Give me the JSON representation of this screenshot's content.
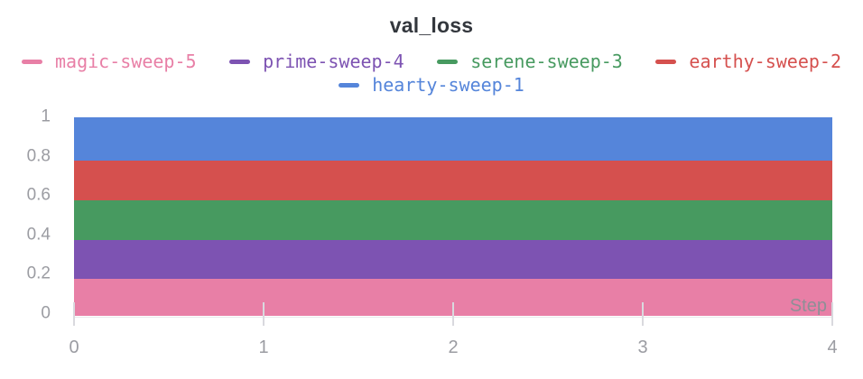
{
  "title": "val_loss",
  "colors": {
    "title_text": "#33373d",
    "axis_text": "#9b9ca2",
    "axis_line": "#e9e9eb",
    "magic_pink": "#e87fa6",
    "prime_purple": "#7d53b2",
    "serene_green": "#479a60",
    "earthy_red": "#d5504e",
    "hearty_blue": "#5585da"
  },
  "legend": {
    "rows": [
      [
        {
          "label": "magic-sweep-5",
          "color": "#e87fa6"
        },
        {
          "label": "prime-sweep-4",
          "color": "#7d53b2"
        },
        {
          "label": "serene-sweep-3",
          "color": "#479a60"
        },
        {
          "label": "earthy-sweep-2",
          "color": "#d5504e"
        }
      ],
      [
        {
          "label": "hearty-sweep-1",
          "color": "#5585da"
        }
      ]
    ]
  },
  "axes": {
    "x": {
      "label": "Step",
      "range": [
        0,
        4
      ],
      "ticks": [
        {
          "value": 0,
          "label": "0"
        },
        {
          "value": 1,
          "label": "1"
        },
        {
          "value": 2,
          "label": "2"
        },
        {
          "value": 3,
          "label": "3"
        },
        {
          "value": 4,
          "label": "4"
        }
      ]
    },
    "y": {
      "range": [
        0,
        1
      ],
      "ticks": [
        {
          "value": 0,
          "label": "0"
        },
        {
          "value": 0.2,
          "label": "0.2"
        },
        {
          "value": 0.4,
          "label": "0.4"
        },
        {
          "value": 0.6,
          "label": "0.6"
        },
        {
          "value": 0.8,
          "label": "0.8"
        },
        {
          "value": 1,
          "label": "1"
        }
      ]
    }
  },
  "chart_data": {
    "type": "line",
    "title": "val_loss",
    "xlabel": "Step",
    "ylabel": "",
    "x": [
      0,
      1,
      2,
      3,
      4
    ],
    "xlim": [
      0,
      4
    ],
    "ylim": [
      0,
      1
    ],
    "legend_position": "top",
    "grid": false,
    "note": "Five constant-valued lines drawn so thick they render as stacked horizontal bands filling 0 to 1",
    "series": [
      {
        "name": "magic-sweep-5",
        "color": "#e87fa6",
        "values": [
          0.1,
          0.1,
          0.1,
          0.1,
          0.1
        ],
        "render_band": [
          -0.009,
          0.179
        ]
      },
      {
        "name": "prime-sweep-4",
        "color": "#7d53b2",
        "values": [
          0.3,
          0.3,
          0.3,
          0.3,
          0.3
        ],
        "render_band": [
          0.179,
          0.376
        ]
      },
      {
        "name": "serene-sweep-3",
        "color": "#479a60",
        "values": [
          0.5,
          0.5,
          0.5,
          0.5,
          0.5
        ],
        "render_band": [
          0.376,
          0.578
        ]
      },
      {
        "name": "earthy-sweep-2",
        "color": "#d5504e",
        "values": [
          0.7,
          0.7,
          0.7,
          0.7,
          0.7
        ],
        "render_band": [
          0.578,
          0.78
        ]
      },
      {
        "name": "hearty-sweep-1",
        "color": "#5585da",
        "values": [
          0.9,
          0.9,
          0.9,
          0.9,
          0.9
        ],
        "render_band": [
          0.78,
          1.0
        ]
      }
    ]
  }
}
